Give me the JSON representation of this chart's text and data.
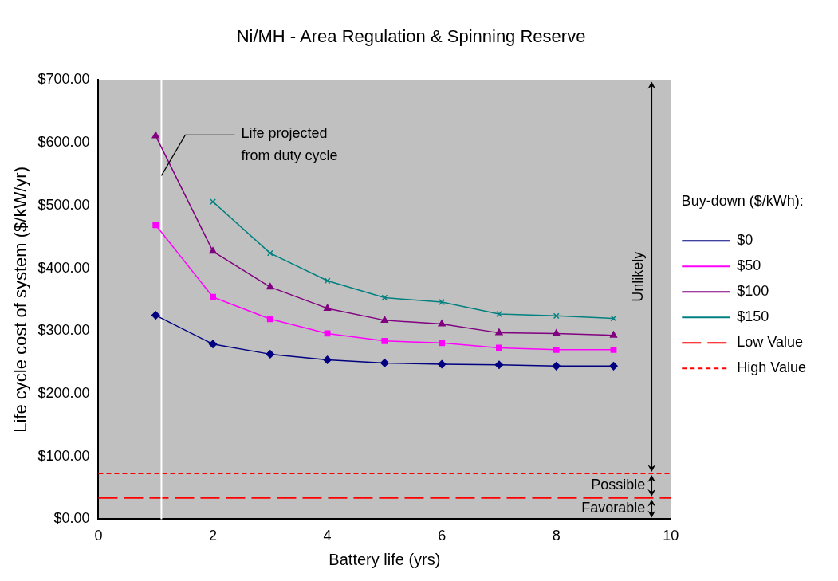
{
  "chart_data": {
    "type": "line",
    "title": "Ni/MH - Area Regulation & Spinning Reserve",
    "xlabel": "Battery life (yrs)",
    "ylabel": "Life cycle cost of system ($/kW/yr)",
    "legend_title": "Buy-down ($/kWh):",
    "legend": "right",
    "grid": false,
    "x": [
      1,
      2,
      3,
      4,
      5,
      6,
      7,
      8,
      9
    ],
    "series": [
      {
        "name": "$0",
        "color": "#000080",
        "marker": "diamond",
        "values": [
          325,
          279,
          263,
          254,
          249,
          247,
          246,
          244,
          244
        ]
      },
      {
        "name": "$50",
        "color": "#ff00ff",
        "marker": "square",
        "values": [
          469,
          354,
          319,
          296,
          284,
          281,
          273,
          270,
          270
        ]
      },
      {
        "name": "$100",
        "color": "#800080",
        "marker": "triangle",
        "values": [
          611,
          427,
          370,
          336,
          317,
          311,
          297,
          296,
          293
        ]
      },
      {
        "name": "$150",
        "color": "#008080",
        "marker": "cross",
        "values": [
          null,
          506,
          424,
          380,
          353,
          346,
          327,
          324,
          320
        ]
      }
    ],
    "xlim": [
      0,
      10
    ],
    "xticks": [
      0,
      2,
      4,
      6,
      8,
      10
    ],
    "ylim": [
      0,
      700
    ],
    "yticks": [
      {
        "value": 0,
        "label": "$0.00"
      },
      {
        "value": 100,
        "label": "$100.00"
      },
      {
        "value": 200,
        "label": "$200.00"
      },
      {
        "value": 300,
        "label": "$300.00"
      },
      {
        "value": 400,
        "label": "$400.00"
      },
      {
        "value": 500,
        "label": "$500.00"
      },
      {
        "value": 600,
        "label": "$600.00"
      },
      {
        "value": 700,
        "label": "$700.00"
      }
    ],
    "ref_lines": [
      {
        "axis": "y",
        "value": 34,
        "label": "Low Value",
        "color": "#ff0000",
        "line_style": "dashed"
      },
      {
        "axis": "y",
        "value": 73,
        "label": "High Value",
        "color": "#ff0000",
        "line_style": "dotted"
      },
      {
        "axis": "x",
        "value": 1.1,
        "label": "Life projected\nfrom duty cycle",
        "color": "#ffffff",
        "line_style": "solid"
      }
    ],
    "annotations": [
      "Unlikely",
      "Possible",
      "Favorable"
    ]
  }
}
